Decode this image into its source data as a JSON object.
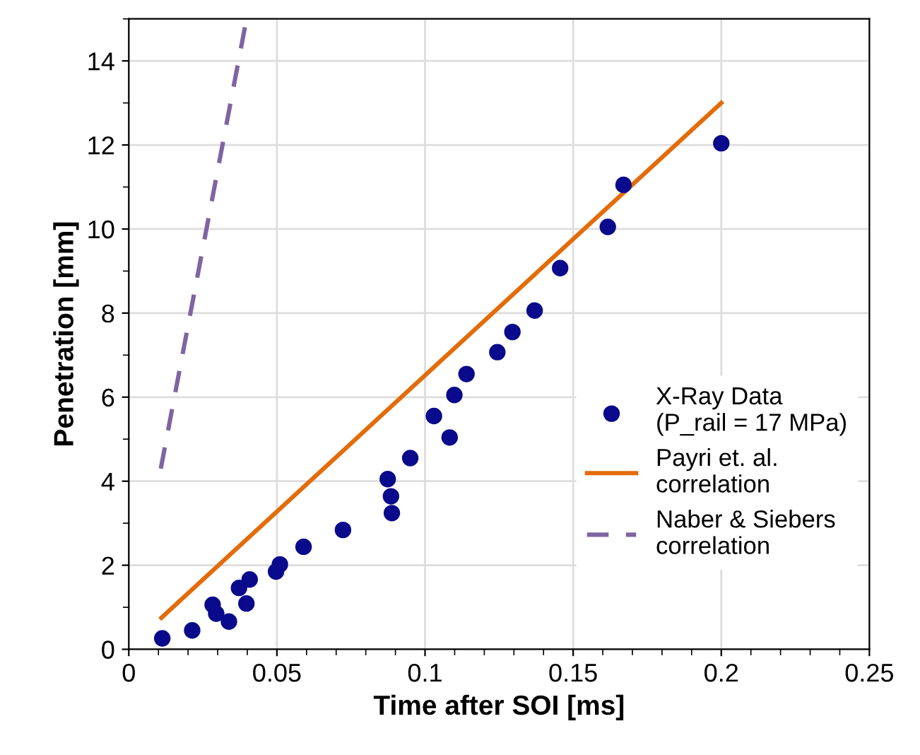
{
  "chart_data": {
    "type": "scatter",
    "xlabel": "Time after SOI [ms]",
    "ylabel": "Penetration [mm]",
    "xlim": [
      0,
      0.25
    ],
    "ylim": [
      0,
      15
    ],
    "xticks": [
      0,
      0.05,
      0.1,
      0.15,
      0.2,
      0.25
    ],
    "yticks": [
      0,
      2,
      4,
      6,
      8,
      10,
      12,
      14
    ],
    "grid": true,
    "legend": "right",
    "series": [
      {
        "name": "X-Ray Data\n(P_rail = 17 MPa)",
        "marker": "circle",
        "color": "#0a0a8c",
        "x": [
          0.0113,
          0.0214,
          0.0283,
          0.0295,
          0.0338,
          0.0372,
          0.0397,
          0.0408,
          0.0497,
          0.051,
          0.059,
          0.0723,
          0.0874,
          0.0885,
          0.0888,
          0.095,
          0.103,
          0.1083,
          0.1099,
          0.114,
          0.1244,
          0.1295,
          0.137,
          0.1456,
          0.1617,
          0.167,
          0.2
        ],
        "values": [
          0.26,
          0.45,
          1.06,
          0.85,
          0.66,
          1.46,
          1.09,
          1.66,
          1.85,
          2.02,
          2.44,
          2.84,
          4.05,
          3.64,
          3.24,
          4.55,
          5.55,
          5.04,
          6.05,
          6.55,
          7.07,
          7.55,
          8.06,
          9.07,
          10.05,
          11.05,
          12.04
        ]
      },
      {
        "name": "Payri et. al.\ncorrelation",
        "type": "line",
        "line_style": "solid",
        "color": "#e36c0a",
        "x": [
          0.011,
          0.2
        ],
        "values": [
          0.75,
          13.0
        ]
      },
      {
        "name": "Naber & Siebers\ncorrelation",
        "type": "line",
        "line_style": "dashed",
        "color": "#8064a2",
        "x": [
          0.0108,
          0.0392
        ],
        "values": [
          4.3,
          14.8
        ]
      }
    ]
  }
}
